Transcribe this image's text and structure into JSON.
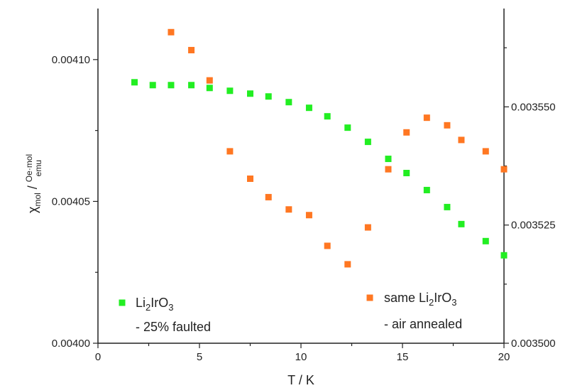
{
  "chart_data": {
    "type": "scatter",
    "x_axis": {
      "label": "T / K",
      "range": [
        0,
        20
      ],
      "ticks": [
        0,
        5,
        10,
        15,
        20
      ],
      "tick_labels": [
        "0",
        "5",
        "10",
        "15",
        "20"
      ]
    },
    "y_axis_left": {
      "label_main": "χ",
      "label_sub": "mol",
      "label_sep": " / ",
      "label_unit_num": "Oe·mol",
      "label_unit_den": "emu",
      "range": [
        0.004,
        0.004118
      ],
      "ticks": [
        0.004,
        0.00405,
        0.0041
      ],
      "tick_labels": [
        "0.00400",
        "0.00405",
        "0.00410"
      ]
    },
    "y_axis_right": {
      "range": [
        0.0035,
        0.0035708
      ],
      "ticks": [
        0.0035,
        0.003525,
        0.00355
      ],
      "tick_labels": [
        "0.003500",
        "0.003525",
        "0.003550"
      ]
    },
    "grid": false,
    "series": [
      {
        "name": "Li2IrO3 - 25% faulted",
        "axis": "left",
        "color": "#22ee22",
        "points": [
          [
            1.8,
            0.004092
          ],
          [
            2.7,
            0.004091
          ],
          [
            3.6,
            0.004091
          ],
          [
            4.6,
            0.004091
          ],
          [
            5.5,
            0.00409
          ],
          [
            6.5,
            0.004089
          ],
          [
            7.5,
            0.004088
          ],
          [
            8.4,
            0.004087
          ],
          [
            9.4,
            0.004085
          ],
          [
            10.4,
            0.004083
          ],
          [
            11.3,
            0.00408
          ],
          [
            12.3,
            0.004076
          ],
          [
            13.3,
            0.004071
          ],
          [
            14.3,
            0.004065
          ],
          [
            15.2,
            0.00406
          ],
          [
            16.2,
            0.004054
          ],
          [
            17.2,
            0.004048
          ],
          [
            17.9,
            0.004042
          ],
          [
            19.1,
            0.004036
          ],
          [
            20.0,
            0.004031
          ]
        ]
      },
      {
        "name": "same Li2IrO3 - air annealed",
        "axis": "right",
        "color": "#ff7722",
        "points": [
          [
            3.6,
            0.0035658
          ],
          [
            4.6,
            0.003562
          ],
          [
            5.5,
            0.0035556
          ],
          [
            6.5,
            0.0035406
          ],
          [
            7.5,
            0.0035348
          ],
          [
            8.4,
            0.0035309
          ],
          [
            9.4,
            0.0035283
          ],
          [
            10.4,
            0.0035271
          ],
          [
            11.3,
            0.0035206
          ],
          [
            12.3,
            0.0035167
          ],
          [
            13.3,
            0.0035245
          ],
          [
            14.3,
            0.0035368
          ],
          [
            15.2,
            0.0035446
          ],
          [
            16.2,
            0.0035477
          ],
          [
            17.2,
            0.0035461
          ],
          [
            17.9,
            0.003543
          ],
          [
            19.1,
            0.0035406
          ],
          [
            20.0,
            0.0035368
          ]
        ]
      }
    ],
    "legend": [
      {
        "series": 0,
        "placement": "bottom-left",
        "parts": [
          "Li",
          "2",
          "IrO",
          "3"
        ],
        "line2": "- 25% faulted"
      },
      {
        "series": 1,
        "placement": "bottom-right",
        "parts": [
          "same Li",
          "2",
          "IrO",
          "3"
        ],
        "line2": "- air annealed"
      }
    ]
  }
}
